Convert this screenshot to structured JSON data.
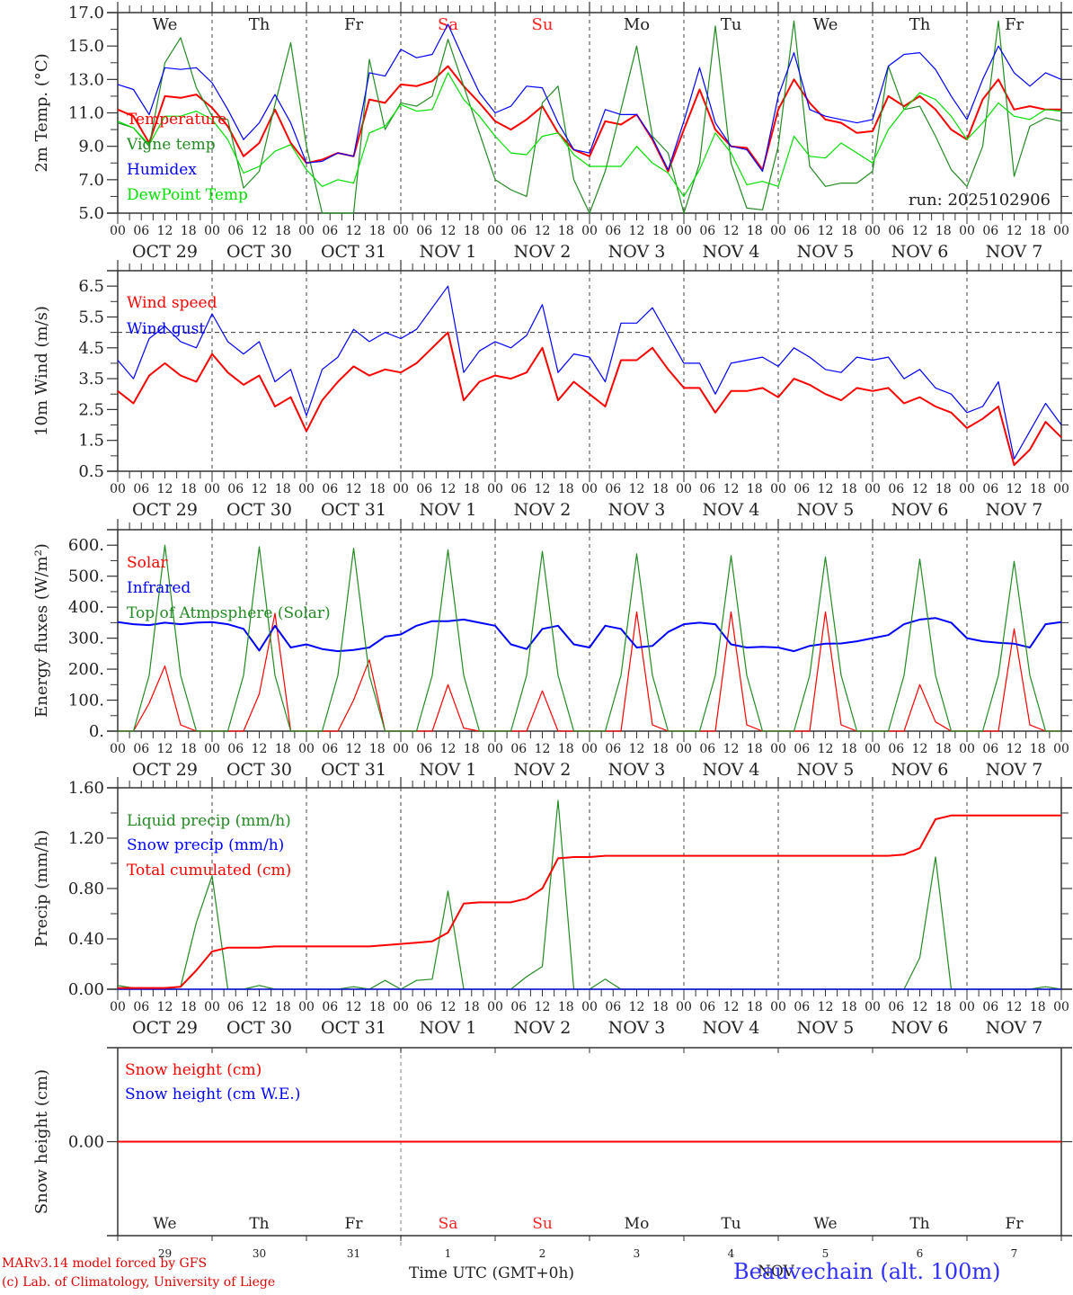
{
  "chart_data": [
    {
      "id": "temp",
      "type": "line",
      "ylabel": "2m Temp. (°C)",
      "ylim": [
        5.0,
        17.0
      ],
      "yticks": [
        "5.0",
        "7.0",
        "9.0",
        "11.0",
        "13.0",
        "15.0",
        "17.0"
      ],
      "ytick_values": [
        5,
        7,
        9,
        11,
        13,
        15,
        17
      ],
      "annotation": "run: 2025102906",
      "legend": [
        {
          "label": "Temperature",
          "color": "#ff0000"
        },
        {
          "label": "Vigne temp",
          "color": "#228b22"
        },
        {
          "label": "Humidex",
          "color": "#0000ff"
        },
        {
          "label": "DewPoint Temp",
          "color": "#00e000"
        }
      ],
      "series": [
        {
          "name": "Temperature",
          "color": "#ff0000",
          "values": [
            11.2,
            10.8,
            9.2,
            12.0,
            11.9,
            12.1,
            11.3,
            10.2,
            8.4,
            9.2,
            11.2,
            9.2,
            8.0,
            8.2,
            8.6,
            8.4,
            11.8,
            11.6,
            12.7,
            12.6,
            12.9,
            13.8,
            12.6,
            11.6,
            10.5,
            10.0,
            10.6,
            11.4,
            9.8,
            8.8,
            8.4,
            10.5,
            10.3,
            10.9,
            9.4,
            7.5,
            10.0,
            12.4,
            10.0,
            9.0,
            8.9,
            7.6,
            11.2,
            13.0,
            11.6,
            10.6,
            10.4,
            9.8,
            9.9,
            12.0,
            11.4,
            12.0,
            11.2,
            10.0,
            9.4,
            11.8,
            13.0,
            11.2,
            11.4,
            11.2,
            11.2
          ]
        },
        {
          "name": "Vigne temp",
          "color": "#228b22",
          "values": [
            10.4,
            10.1,
            9.0,
            14.0,
            15.5,
            12.5,
            10.8,
            10.6,
            6.5,
            7.5,
            11.5,
            15.2,
            9.0,
            4.0,
            5.0,
            5.0,
            14.2,
            10.0,
            11.6,
            11.4,
            12.0,
            15.4,
            12.6,
            9.8,
            7.0,
            6.4,
            6.0,
            11.6,
            12.6,
            7.0,
            4.5,
            7.5,
            11.2,
            15.0,
            9.6,
            8.6,
            5.0,
            8.0,
            16.2,
            8.0,
            5.3,
            5.2,
            9.0,
            16.5,
            7.8,
            6.6,
            6.8,
            6.8,
            7.5,
            13.8,
            11.2,
            11.4,
            9.6,
            7.6,
            6.6,
            9.0,
            16.5,
            7.2,
            10.2,
            10.7,
            10.5
          ]
        },
        {
          "name": "Humidex",
          "color": "#0000ff",
          "values": [
            12.7,
            12.4,
            10.9,
            13.7,
            13.6,
            13.7,
            12.8,
            11.2,
            9.4,
            10.4,
            12.1,
            10.4,
            8.0,
            8.1,
            8.6,
            8.4,
            13.4,
            13.2,
            14.8,
            14.3,
            14.5,
            16.3,
            14.2,
            12.2,
            11.0,
            11.4,
            12.6,
            12.5,
            10.4,
            8.8,
            8.6,
            11.2,
            10.9,
            10.9,
            9.5,
            7.6,
            10.5,
            13.7,
            10.4,
            9.0,
            8.8,
            7.5,
            12.0,
            14.6,
            11.2,
            10.8,
            10.6,
            10.4,
            10.6,
            13.8,
            14.5,
            14.6,
            13.6,
            12.0,
            10.6,
            13.0,
            15.0,
            13.4,
            12.6,
            13.4,
            13.0
          ]
        },
        {
          "name": "DewPoint Temp",
          "color": "#00e000",
          "values": [
            10.5,
            10.1,
            9.1,
            10.8,
            10.8,
            11.1,
            10.6,
            9.4,
            7.4,
            7.8,
            8.7,
            9.1,
            7.6,
            6.6,
            7.0,
            6.8,
            9.8,
            10.2,
            11.5,
            11.1,
            11.2,
            13.4,
            11.8,
            10.8,
            9.6,
            8.6,
            8.5,
            9.6,
            9.8,
            8.5,
            7.8,
            7.8,
            7.8,
            9.0,
            8.0,
            7.4,
            6.0,
            7.6,
            9.8,
            8.6,
            6.7,
            6.9,
            6.6,
            9.6,
            8.4,
            8.3,
            9.2,
            8.6,
            8.0,
            10.0,
            11.2,
            12.2,
            11.8,
            10.8,
            9.4,
            10.4,
            11.6,
            10.8,
            10.6,
            11.2,
            11.1
          ]
        }
      ]
    },
    {
      "id": "wind",
      "type": "line",
      "ylabel": "10m Wind (m/s)",
      "ylim": [
        0.5,
        7.0
      ],
      "yticks": [
        "0.5",
        "1.5",
        "2.5",
        "3.5",
        "4.5",
        "5.5",
        "6.5"
      ],
      "ytick_values": [
        0.5,
        1.5,
        2.5,
        3.5,
        4.5,
        5.5,
        6.5
      ],
      "reference_line": 5.0,
      "legend": [
        {
          "label": "Wind speed",
          "color": "#ff0000"
        },
        {
          "label": "Wind gust",
          "color": "#0000ff"
        }
      ],
      "series": [
        {
          "name": "Wind speed",
          "color": "#ff0000",
          "values": [
            3.1,
            2.7,
            3.6,
            4.0,
            3.6,
            3.4,
            4.3,
            3.7,
            3.3,
            3.6,
            2.6,
            2.9,
            1.8,
            2.8,
            3.4,
            3.9,
            3.6,
            3.8,
            3.7,
            4.0,
            4.5,
            5.0,
            2.8,
            3.4,
            3.6,
            3.5,
            3.7,
            4.5,
            2.8,
            3.4,
            3.0,
            2.6,
            4.1,
            4.1,
            4.5,
            3.8,
            3.2,
            3.2,
            2.4,
            3.1,
            3.1,
            3.2,
            2.9,
            3.5,
            3.3,
            3.0,
            2.8,
            3.2,
            3.1,
            3.2,
            2.7,
            2.9,
            2.6,
            2.4,
            1.9,
            2.2,
            2.6,
            0.7,
            1.2,
            2.1,
            1.6
          ]
        },
        {
          "name": "Wind gust",
          "color": "#0000ff",
          "values": [
            4.1,
            3.5,
            4.8,
            5.2,
            4.7,
            4.5,
            5.6,
            4.7,
            4.3,
            4.7,
            3.4,
            3.8,
            2.3,
            3.8,
            4.2,
            5.1,
            4.7,
            5.0,
            4.8,
            5.1,
            5.8,
            6.5,
            3.7,
            4.4,
            4.7,
            4.5,
            4.9,
            5.9,
            3.7,
            4.3,
            4.2,
            3.4,
            5.3,
            5.3,
            5.8,
            4.9,
            4.0,
            4.0,
            3.0,
            4.0,
            4.1,
            4.2,
            3.9,
            4.5,
            4.2,
            3.8,
            3.7,
            4.2,
            4.1,
            4.2,
            3.5,
            3.8,
            3.2,
            3.0,
            2.4,
            2.6,
            3.4,
            0.9,
            1.8,
            2.7,
            2.0
          ]
        }
      ]
    },
    {
      "id": "energy",
      "type": "line",
      "ylabel": "Energy fluxes (W/m²)",
      "ylim": [
        0,
        650
      ],
      "yticks": [
        "0.",
        "100.",
        "200.",
        "300.",
        "400.",
        "500.",
        "600."
      ],
      "ytick_values": [
        0,
        100,
        200,
        300,
        400,
        500,
        600
      ],
      "legend": [
        {
          "label": "Solar",
          "color": "#ff0000"
        },
        {
          "label": "Infrared",
          "color": "#0000ff"
        },
        {
          "label": "Top of Atmosphere (Solar)",
          "color": "#228b22"
        }
      ],
      "series": [
        {
          "name": "Solar",
          "color": "#ff0000",
          "values": [
            0,
            0,
            90,
            210,
            20,
            0,
            0,
            0,
            0,
            120,
            380,
            0,
            0,
            0,
            0,
            100,
            230,
            0,
            0,
            0,
            0,
            150,
            10,
            0,
            0,
            0,
            0,
            130,
            0,
            0,
            0,
            0,
            0,
            385,
            20,
            0,
            0,
            0,
            0,
            385,
            20,
            0,
            0,
            0,
            0,
            385,
            20,
            0,
            0,
            0,
            0,
            150,
            30,
            0,
            0,
            0,
            0,
            330,
            20,
            0,
            0
          ]
        },
        {
          "name": "Infrared",
          "color": "#0000ff",
          "values": [
            352,
            345,
            342,
            350,
            345,
            350,
            352,
            345,
            330,
            260,
            340,
            270,
            280,
            265,
            258,
            262,
            270,
            305,
            312,
            340,
            355,
            355,
            360,
            350,
            340,
            280,
            265,
            330,
            340,
            280,
            270,
            340,
            330,
            270,
            275,
            320,
            345,
            350,
            345,
            280,
            270,
            272,
            270,
            258,
            275,
            282,
            283,
            290,
            300,
            310,
            345,
            360,
            365,
            350,
            300,
            290,
            285,
            282,
            270,
            345,
            352
          ]
        },
        {
          "name": "Top of Atmosphere (Solar)",
          "color": "#228b22",
          "values": [
            0,
            0,
            180,
            600,
            180,
            0,
            0,
            0,
            180,
            595,
            180,
            0,
            0,
            0,
            180,
            590,
            180,
            0,
            0,
            0,
            180,
            585,
            180,
            0,
            0,
            0,
            180,
            580,
            180,
            0,
            0,
            0,
            180,
            572,
            180,
            0,
            0,
            0,
            180,
            566,
            180,
            0,
            0,
            0,
            180,
            562,
            180,
            0,
            0,
            0,
            180,
            555,
            180,
            0,
            0,
            0,
            180,
            548,
            180,
            0,
            0
          ]
        }
      ]
    },
    {
      "id": "precip",
      "type": "line",
      "ylabel": "Precip (mm/h)",
      "ylim": [
        0,
        1.6
      ],
      "yticks": [
        "0.00",
        "0.40",
        "0.80",
        "1.20",
        "1.60"
      ],
      "ytick_values": [
        0,
        0.4,
        0.8,
        1.2,
        1.6
      ],
      "legend": [
        {
          "label": "Liquid precip (mm/h)",
          "color": "#228b22"
        },
        {
          "label": "Snow precip (mm/h)",
          "color": "#0000ff"
        },
        {
          "label": "Total cumulated (cm)",
          "color": "#ff0000"
        }
      ],
      "series": [
        {
          "name": "Liquid precip (mm/h)",
          "color": "#228b22",
          "values": [
            0.03,
            0.01,
            0.0,
            0.0,
            0.02,
            0.53,
            0.9,
            0.0,
            0.0,
            0.03,
            0.0,
            0.0,
            0.0,
            0.0,
            0.0,
            0.02,
            0.0,
            0.07,
            0.0,
            0.07,
            0.08,
            0.78,
            0.0,
            0.0,
            0.0,
            0.0,
            0.1,
            0.18,
            1.5,
            0.0,
            0.0,
            0.08,
            0.0,
            0.0,
            0.0,
            0.0,
            0.0,
            0.0,
            0.0,
            0.0,
            0.0,
            0.0,
            0.0,
            0.0,
            0.0,
            0.0,
            0.0,
            0.0,
            0.0,
            0.0,
            0.0,
            0.25,
            1.05,
            0.0,
            0.0,
            0.0,
            0.0,
            0.0,
            0.0,
            0.02,
            0.0
          ]
        },
        {
          "name": "Snow precip (mm/h)",
          "color": "#0000ff",
          "values": [
            0,
            0,
            0,
            0,
            0,
            0,
            0,
            0,
            0,
            0,
            0,
            0,
            0,
            0,
            0,
            0,
            0,
            0,
            0,
            0,
            0,
            0,
            0,
            0,
            0,
            0,
            0,
            0,
            0,
            0,
            0,
            0,
            0,
            0,
            0,
            0,
            0,
            0,
            0,
            0,
            0,
            0,
            0,
            0,
            0,
            0,
            0,
            0,
            0,
            0,
            0,
            0,
            0,
            0,
            0,
            0,
            0,
            0,
            0,
            0,
            0
          ]
        },
        {
          "name": "Total cumulated (cm)",
          "color": "#ff0000",
          "values": [
            0.01,
            0.01,
            0.01,
            0.01,
            0.02,
            0.15,
            0.3,
            0.33,
            0.33,
            0.33,
            0.34,
            0.34,
            0.34,
            0.34,
            0.34,
            0.34,
            0.34,
            0.35,
            0.36,
            0.37,
            0.38,
            0.45,
            0.68,
            0.69,
            0.69,
            0.69,
            0.72,
            0.8,
            1.04,
            1.05,
            1.05,
            1.06,
            1.06,
            1.06,
            1.06,
            1.06,
            1.06,
            1.06,
            1.06,
            1.06,
            1.06,
            1.06,
            1.06,
            1.06,
            1.06,
            1.06,
            1.06,
            1.06,
            1.06,
            1.06,
            1.07,
            1.12,
            1.35,
            1.38,
            1.38,
            1.38,
            1.38,
            1.38,
            1.38,
            1.38,
            1.38
          ]
        }
      ]
    },
    {
      "id": "snow",
      "type": "line",
      "ylabel": "Snow height (cm)",
      "ylim": [
        -1,
        1
      ],
      "yticks": [
        "0.00"
      ],
      "ytick_values": [
        0
      ],
      "legend": [
        {
          "label": "Snow height (cm)",
          "color": "#ff0000"
        },
        {
          "label": "Snow height (cm W.E.)",
          "color": "#0000ff"
        }
      ],
      "series": [
        {
          "name": "Snow height (cm)",
          "color": "#ff0000",
          "values": [
            0,
            0,
            0,
            0,
            0,
            0,
            0,
            0,
            0,
            0,
            0,
            0,
            0,
            0,
            0,
            0,
            0,
            0,
            0,
            0,
            0,
            0,
            0,
            0,
            0,
            0,
            0,
            0,
            0,
            0,
            0,
            0,
            0,
            0,
            0,
            0,
            0,
            0,
            0,
            0,
            0,
            0,
            0,
            0,
            0,
            0,
            0,
            0,
            0,
            0,
            0,
            0,
            0,
            0,
            0,
            0,
            0,
            0,
            0,
            0,
            0
          ]
        }
      ]
    }
  ],
  "time_axis": {
    "hour_ticks": [
      "00",
      "06",
      "12",
      "18"
    ],
    "end_tick": "00",
    "date_labels": [
      "OCT 29",
      "OCT 30",
      "OCT 31",
      "NOV 1",
      "NOV 2",
      "NOV 3",
      "NOV 4",
      "NOV 5",
      "NOV 6",
      "NOV 7"
    ],
    "day_names": [
      {
        "label": "We",
        "weekend": false
      },
      {
        "label": "Th",
        "weekend": false
      },
      {
        "label": "Fr",
        "weekend": false
      },
      {
        "label": "Sa",
        "weekend": true
      },
      {
        "label": "Su",
        "weekend": true
      },
      {
        "label": "Mo",
        "weekend": false
      },
      {
        "label": "Tu",
        "weekend": false
      },
      {
        "label": "We",
        "weekend": false
      },
      {
        "label": "Th",
        "weekend": false
      },
      {
        "label": "Fr",
        "weekend": false
      }
    ],
    "day_numbers": [
      "29",
      "30",
      "31",
      "1",
      "2",
      "3",
      "4",
      "5",
      "6",
      "7"
    ],
    "month_label": "NOV",
    "xlabel": "Time UTC (GMT+0h)"
  },
  "footer": {
    "credit_line1": "MARv3.14 model forced by GFS",
    "credit_line2": "(c) Lab. of Climatology, University of Liege",
    "station": "Beauvechain (alt. 100m)"
  },
  "colors": {
    "axis": "#333333",
    "weekend": "#ff2020",
    "credit": "#e00000",
    "station": "#3030ff",
    "grid": "#444444"
  }
}
